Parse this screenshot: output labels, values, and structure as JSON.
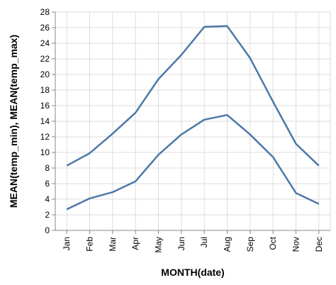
{
  "chart_data": {
    "type": "line",
    "xlabel": "MONTH(date)",
    "ylabel": "MEAN(temp_min), MEAN(temp_max)",
    "categories": [
      "Jan",
      "Feb",
      "Mar",
      "Apr",
      "May",
      "Jun",
      "Jul",
      "Aug",
      "Sep",
      "Oct",
      "Nov",
      "Dec"
    ],
    "ylim": [
      0,
      28
    ],
    "yticks": [
      0,
      2,
      4,
      6,
      8,
      10,
      12,
      14,
      16,
      18,
      20,
      22,
      24,
      26,
      28
    ],
    "grid": true,
    "legend": "none",
    "series": [
      {
        "values": [
          8.3,
          9.9,
          12.4,
          15.1,
          19.4,
          22.5,
          26.1,
          26.2,
          22.1,
          16.5,
          11.1,
          8.3
        ],
        "color": "#4c78a8"
      },
      {
        "values": [
          2.7,
          4.1,
          4.9,
          6.3,
          9.7,
          12.3,
          14.2,
          14.8,
          12.3,
          9.4,
          4.8,
          3.4
        ],
        "color": "#4c78a8"
      }
    ]
  }
}
